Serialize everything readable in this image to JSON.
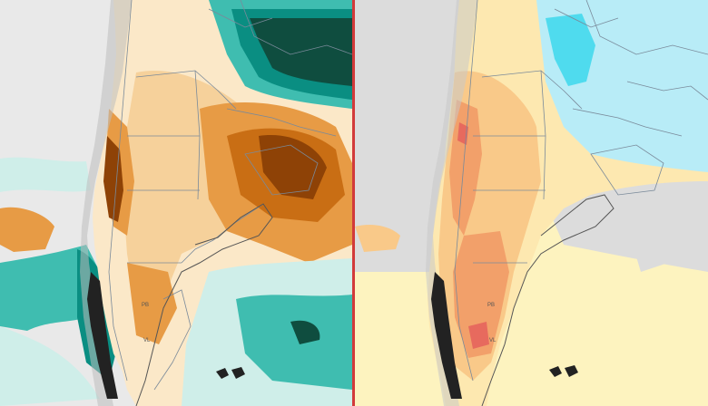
{
  "figure": {
    "divider_color": "#d23a3a"
  },
  "panels": [
    {
      "id": "left",
      "product": "precipitation-anomaly",
      "colors": {
        "ocean": "#e9e9e9",
        "land_base": "#fbe8c8",
        "dry_light": "#f6d19b",
        "dry_mid": "#e79b45",
        "dry_strong": "#c96e14",
        "dry_extreme": "#8e4206",
        "wet_light": "#cfeee9",
        "wet_mid": "#3fbdb0",
        "wet_strong": "#0a8e82",
        "wet_extreme": "#0f4d3f",
        "andes_relief": "#bdbdbd",
        "borders": "#7a8a9a"
      },
      "small_labels": [
        "PB",
        "VL"
      ]
    },
    {
      "id": "right",
      "product": "temperature-anomaly",
      "colors": {
        "ocean": "#fdf3bf",
        "ocean_gray": "#dcdcdc",
        "land_base": "#fde8b0",
        "warm_light": "#f9c989",
        "warm_mid": "#f2a06a",
        "warm_strong": "#e76a5e",
        "cool_light": "#b8ecf7",
        "cool_strong": "#4fdbee",
        "andes_relief": "#c8c8c8",
        "borders": "#7a8a9a"
      },
      "small_labels": [
        "PB",
        "VL"
      ]
    }
  ]
}
